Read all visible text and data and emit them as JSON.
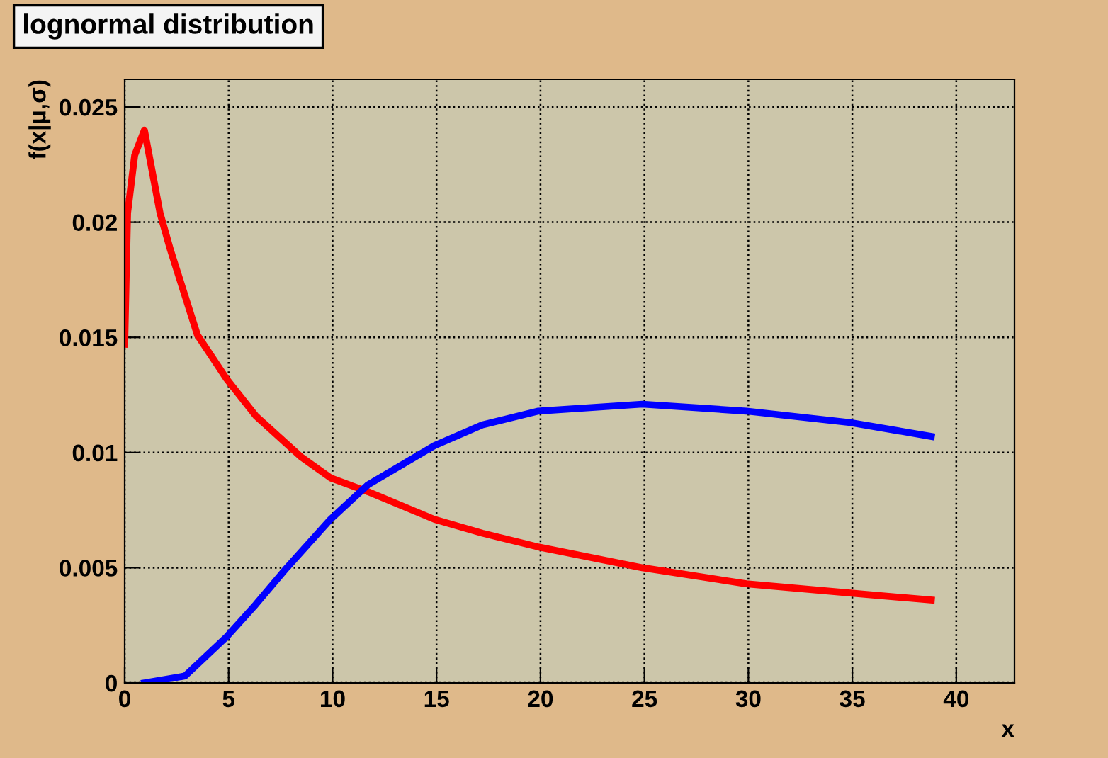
{
  "chart_data": {
    "type": "line",
    "title": "lognormal distribution",
    "xlabel": "x",
    "ylabel": "f(x|μ,σ)",
    "xlim": [
      0,
      42.8
    ],
    "ylim": [
      0,
      0.0262
    ],
    "xticks": [
      0,
      5,
      10,
      15,
      20,
      25,
      30,
      35,
      40
    ],
    "yticks": [
      0,
      {
        "value": 0.005,
        "label": "0.005"
      },
      {
        "value": 0.01,
        "label": "0.01"
      },
      {
        "value": 0.015,
        "label": "0.015"
      },
      {
        "value": 0.02,
        "label": "0.02"
      },
      {
        "value": 0.025,
        "label": "0.025"
      }
    ],
    "grid": true,
    "legend": false,
    "marker": "none",
    "line_style": "solid",
    "series": [
      {
        "color": "#ff0000",
        "x": [
          0,
          0.14,
          0.48,
          0.95,
          1.7,
          2.2,
          3.5,
          4.9,
          6.3,
          8.5,
          9.9,
          11.7,
          14.9,
          17.2,
          19.9,
          24.9,
          29.9,
          34.9,
          38.8
        ],
        "values": [
          0.0147,
          0.0204,
          0.0229,
          0.024,
          0.0204,
          0.0188,
          0.0151,
          0.0132,
          0.0116,
          0.0098,
          0.0089,
          0.0083,
          0.0071,
          0.0065,
          0.0059,
          0.005,
          0.0043,
          0.0039,
          0.0036
        ]
      },
      {
        "color": "#0000ff",
        "x": [
          0.95,
          2.9,
          4.9,
          6.3,
          7.8,
          9.9,
          11.7,
          14.9,
          17.2,
          19.9,
          24.9,
          29.9,
          34.9,
          38.8
        ],
        "values": [
          0,
          0.0003,
          0.002,
          0.0034,
          0.005,
          0.0071,
          0.0086,
          0.0103,
          0.0112,
          0.0118,
          0.0121,
          0.0118,
          0.0113,
          0.0107
        ]
      }
    ]
  }
}
